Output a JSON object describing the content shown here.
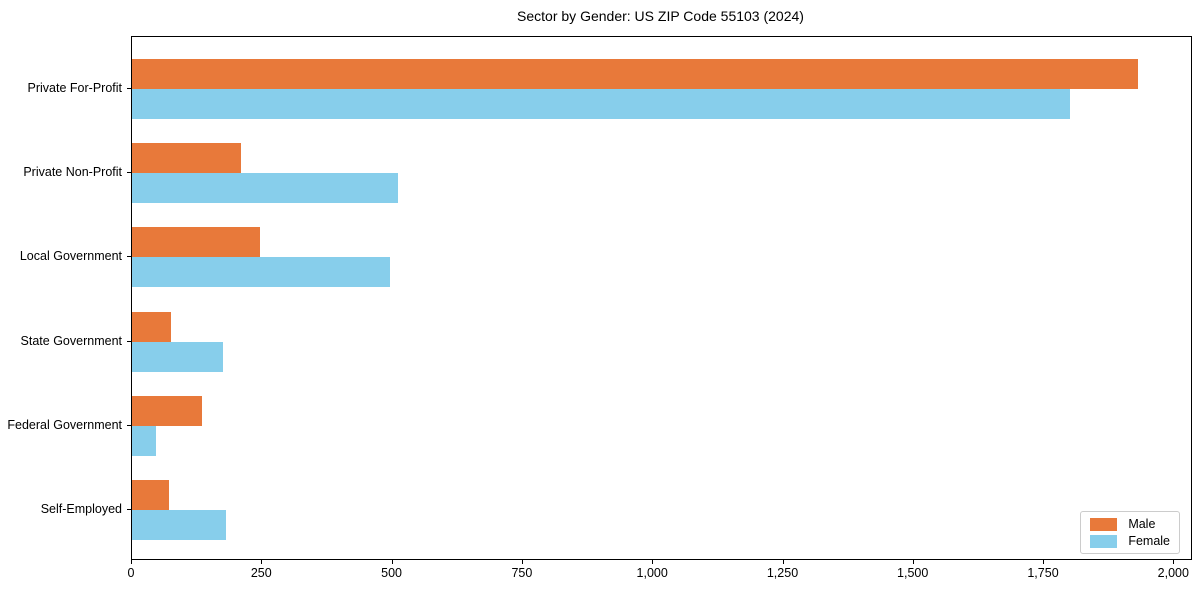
{
  "figure": {
    "background": "#ffffff",
    "spine_color": "#000000",
    "legend_border_color": "#cccccc"
  },
  "chart_data": {
    "type": "bar",
    "orientation": "horizontal",
    "title": "Sector by Gender: US ZIP Code 55103 (2024)",
    "categories": [
      "Private For-Profit",
      "Private Non-Profit",
      "Local Government",
      "State Government",
      "Federal Government",
      "Self-Employed"
    ],
    "series": [
      {
        "name": "Male",
        "color": "#e8793a",
        "values": [
          1930,
          210,
          245,
          75,
          135,
          70
        ]
      },
      {
        "name": "Female",
        "color": "#87ceeb",
        "values": [
          1800,
          510,
          495,
          175,
          45,
          180
        ]
      }
    ],
    "xlabel": "",
    "ylabel": "",
    "xlim": [
      0,
      2032
    ],
    "xticks": [
      0,
      250,
      500,
      750,
      1000,
      1250,
      1500,
      1750,
      2000
    ],
    "xtick_labels": [
      "0",
      "250",
      "500",
      "750",
      "1,000",
      "1,250",
      "1,500",
      "1,750",
      "2,000"
    ],
    "grid": false,
    "legend": {
      "position": "lower right"
    }
  }
}
